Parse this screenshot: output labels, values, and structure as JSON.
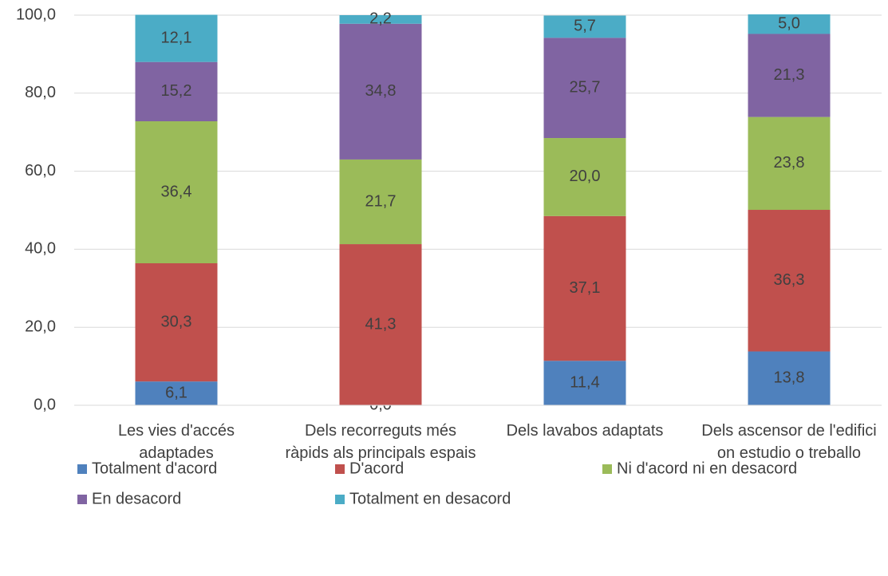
{
  "chart_data": {
    "type": "stacked_bar",
    "categories": [
      "Les vies d'accés adaptades",
      "Dels recorreguts més ràpids als principals espais",
      "Dels lavabos adaptats",
      "Dels ascensor de l'edifici on estudio o treballo"
    ],
    "series": [
      {
        "name": "Totalment d'acord",
        "color": "#4f81bd",
        "values": [
          6.1,
          0.0,
          11.4,
          13.8
        ],
        "value_labels": [
          "6,1",
          "0,0",
          "11,4",
          "13,8"
        ]
      },
      {
        "name": "D'acord",
        "color": "#c0504d",
        "values": [
          30.3,
          41.3,
          37.1,
          36.3
        ],
        "value_labels": [
          "30,3",
          "41,3",
          "37,1",
          "36,3"
        ]
      },
      {
        "name": "Ni d'acord ni en desacord",
        "color": "#9bbb59",
        "values": [
          36.4,
          21.7,
          20.0,
          23.8
        ],
        "value_labels": [
          "36,4",
          "21,7",
          "20,0",
          "23,8"
        ]
      },
      {
        "name": "En desacord",
        "color": "#8064a2",
        "values": [
          15.2,
          34.8,
          25.7,
          21.3
        ],
        "value_labels": [
          "15,2",
          "34,8",
          "25,7",
          "21,3"
        ]
      },
      {
        "name": "Totalment en desacord",
        "color": "#4bacc6",
        "values": [
          12.1,
          2.2,
          5.7,
          5.0
        ],
        "value_labels": [
          "12,1",
          "2,2",
          "5,7",
          "5,0"
        ]
      }
    ],
    "ylim": [
      0,
      100
    ],
    "yticks": [
      {
        "value": 0,
        "label": "0,0"
      },
      {
        "value": 20,
        "label": "20,0"
      },
      {
        "value": 40,
        "label": "40,0"
      },
      {
        "value": 60,
        "label": "60,0"
      },
      {
        "value": 80,
        "label": "80,0"
      },
      {
        "value": 100,
        "label": "100,0"
      }
    ],
    "grid": true,
    "legend": "bottom"
  }
}
